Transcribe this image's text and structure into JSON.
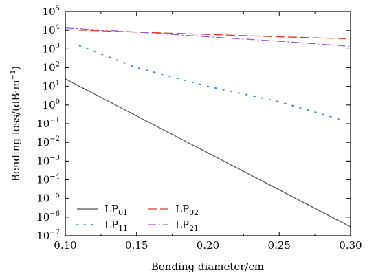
{
  "chart_data": {
    "type": "line",
    "xlabel": "Bending diameter/cm",
    "ylabel": "Bending loss/(dB·m",
    "ylabel_sup": "−1",
    "ylabel_close": ")",
    "xlim": [
      0.1,
      0.3
    ],
    "ylim_exponent": [
      -7,
      5
    ],
    "yscale": "log",
    "grid": false,
    "legend_position": "bottom-left",
    "x_ticks": [
      "0.10",
      "0.15",
      "0.20",
      "0.25",
      "0.30"
    ],
    "y_tick_base": "10",
    "y_tick_exponents": [
      "−7",
      "−6",
      "−5",
      "−4",
      "−3",
      "−2",
      "−1",
      "0",
      "1",
      "2",
      "3",
      "4",
      "5"
    ],
    "series": [
      {
        "name_main": "LP",
        "name_sub": "01",
        "color": "#555555",
        "style": "solid",
        "x": [
          0.1,
          0.3
        ],
        "y": [
          25,
          3e-07
        ]
      },
      {
        "name_main": "LP",
        "name_sub": "02",
        "color": "#e8302a",
        "style": "dashed",
        "x": [
          0.1,
          0.15,
          0.2,
          0.25,
          0.3
        ],
        "y": [
          11000,
          8000,
          6000,
          4500,
          3500
        ]
      },
      {
        "name_main": "LP",
        "name_sub": "11",
        "color": "#2a7fd4",
        "style": "dotted",
        "x": [
          0.11,
          0.15,
          0.2,
          0.25,
          0.295
        ],
        "y": [
          1500,
          100,
          10,
          1.5,
          0.15
        ]
      },
      {
        "name_main": "LP",
        "name_sub": "21",
        "color": "#9a5fd0",
        "style": "dashdot",
        "x": [
          0.1,
          0.15,
          0.2,
          0.25,
          0.3
        ],
        "y": [
          13500,
          8000,
          4500,
          2600,
          1400
        ]
      }
    ]
  }
}
